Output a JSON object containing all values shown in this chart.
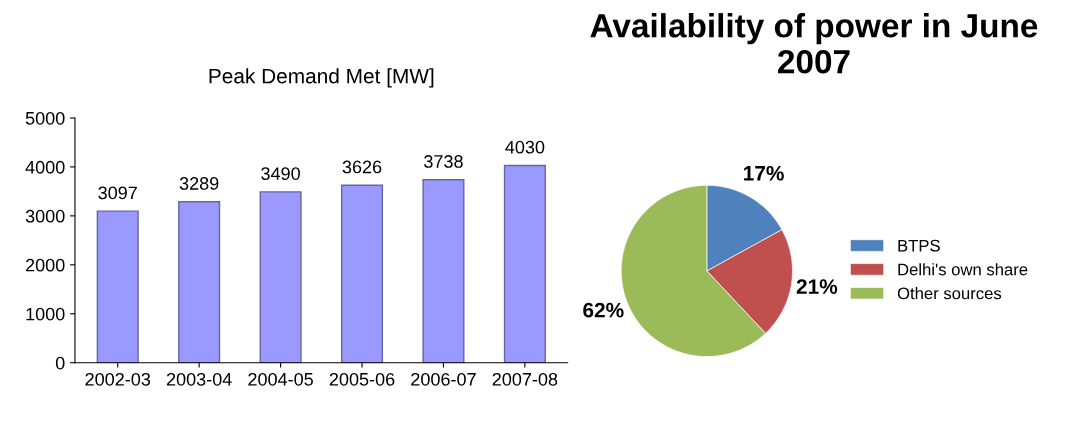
{
  "chart_data": [
    {
      "type": "bar",
      "title": "Peak Demand Met [MW]",
      "categories": [
        "2002-03",
        "2003-04",
        "2004-05",
        "2005-06",
        "2006-07",
        "2007-08"
      ],
      "values": [
        3097,
        3289,
        3490,
        3626,
        3738,
        4030
      ],
      "color": "#9999ff",
      "ylim": [
        0,
        5000
      ],
      "yticks": [
        0,
        1000,
        2000,
        3000,
        4000,
        5000
      ],
      "data_labels": true,
      "grid": false
    },
    {
      "type": "pie",
      "title": "Availability of power in June 2007",
      "categories": [
        "BTPS",
        "Delhi's own share",
        "Other sources"
      ],
      "values": [
        17,
        21,
        62
      ],
      "colors": [
        "#4f81bd",
        "#c0504d",
        "#9bbb59"
      ],
      "value_labels": [
        "17%",
        "21%",
        "62%"
      ],
      "legend": "right"
    }
  ]
}
